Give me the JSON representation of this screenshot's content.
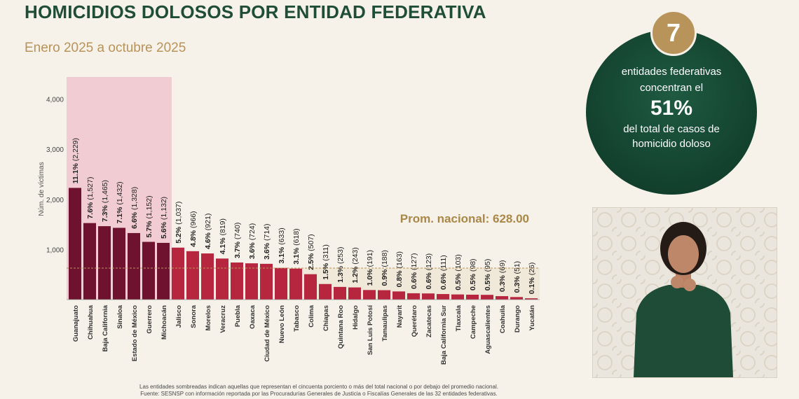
{
  "header": {
    "title": "HOMICIDIOS DOLOSOS POR ENTIDAD FEDERATIVA",
    "subtitle": "Enero 2025 a octubre 2025"
  },
  "badge": {
    "number": "7",
    "line1": "entidades federativas",
    "line2": "concentran el",
    "percent": "51%",
    "line3": "del total de casos de",
    "line4": "homicidio doloso"
  },
  "footnotes": {
    "line1": "Las entidades sombreadas indican aquellas que representan el cincuenta porciento o más del total nacional o por debajo del promedio nacional.",
    "line2": "Fuente: SESNSP con información reportada por las Procuradurías Generales de Justicia o Fiscalías Generales de las 32 entidades federativas."
  },
  "colors": {
    "dark_bar": "#6e1230",
    "bar": "#b7263f",
    "highlight": "#f1cdd3",
    "below_avg_shade": "#f0e8d8",
    "avg_line": "#b8935a",
    "avg_text": "#a98847",
    "accent_green": "#1f4d36",
    "gold": "#b8935a"
  },
  "chart_data": {
    "type": "bar",
    "ylabel": "Núm. de víctimas",
    "ylim": [
      0,
      4300
    ],
    "yticks": [
      1000,
      2000,
      3000,
      4000
    ],
    "ytick_labels": [
      "1,000",
      "2,000",
      "3,000",
      "4,000"
    ],
    "average": 628.0,
    "average_label": "Prom. nacional: 628.00",
    "highlighted_count": 7,
    "categories": [
      "Guanajuato",
      "Chihuahua",
      "Baja California",
      "Sinaloa",
      "Estado de México",
      "Guerrero",
      "Michoacán",
      "Jalisco",
      "Sonora",
      "Morelos",
      "Veracruz",
      "Puebla",
      "Oaxaca",
      "Ciudad de México",
      "Nuevo León",
      "Tabasco",
      "Colima",
      "Chiapas",
      "Quintana Roo",
      "Hidalgo",
      "San Luis Potosí",
      "Tamaulipas",
      "Nayarit",
      "Querétaro",
      "Zacatecas",
      "Baja California Sur",
      "Tlaxcala",
      "Campeche",
      "Aguascalientes",
      "Coahuila",
      "Durango",
      "Yucatán"
    ],
    "values": [
      2229,
      1527,
      1465,
      1432,
      1328,
      1152,
      1132,
      1037,
      966,
      921,
      819,
      740,
      724,
      714,
      633,
      618,
      507,
      311,
      253,
      243,
      191,
      188,
      163,
      127,
      123,
      111,
      103,
      98,
      95,
      69,
      51,
      26
    ],
    "pct_labels": [
      "11.1%",
      "7.6%",
      "7.3%",
      "7.1%",
      "6.6%",
      "5.7%",
      "5.6%",
      "5.2%",
      "4.8%",
      "4.6%",
      "4.1%",
      "3.7%",
      "3.6%",
      "3.6%",
      "3.1%",
      "3.1%",
      "2.5%",
      "1.5%",
      "1.3%",
      "1.2%",
      "1.0%",
      "0.9%",
      "0.8%",
      "0.6%",
      "0.6%",
      "0.6%",
      "0.5%",
      "0.5%",
      "0.5%",
      "0.3%",
      "0.3%",
      "0.1%"
    ],
    "count_labels": [
      "(2,229)",
      "(1,527)",
      "(1,465)",
      "(1,432)",
      "(1,328)",
      "(1,152)",
      "(1,132)",
      "(1,037)",
      "(966)",
      "(921)",
      "(819)",
      "(740)",
      "(724)",
      "(714)",
      "(633)",
      "(618)",
      "(507)",
      "(311)",
      "(253)",
      "(243)",
      "(191)",
      "(188)",
      "(163)",
      "(127)",
      "(123)",
      "(111)",
      "(103)",
      "(98)",
      "(95)",
      "(69)",
      "(51)",
      "(26)"
    ]
  }
}
